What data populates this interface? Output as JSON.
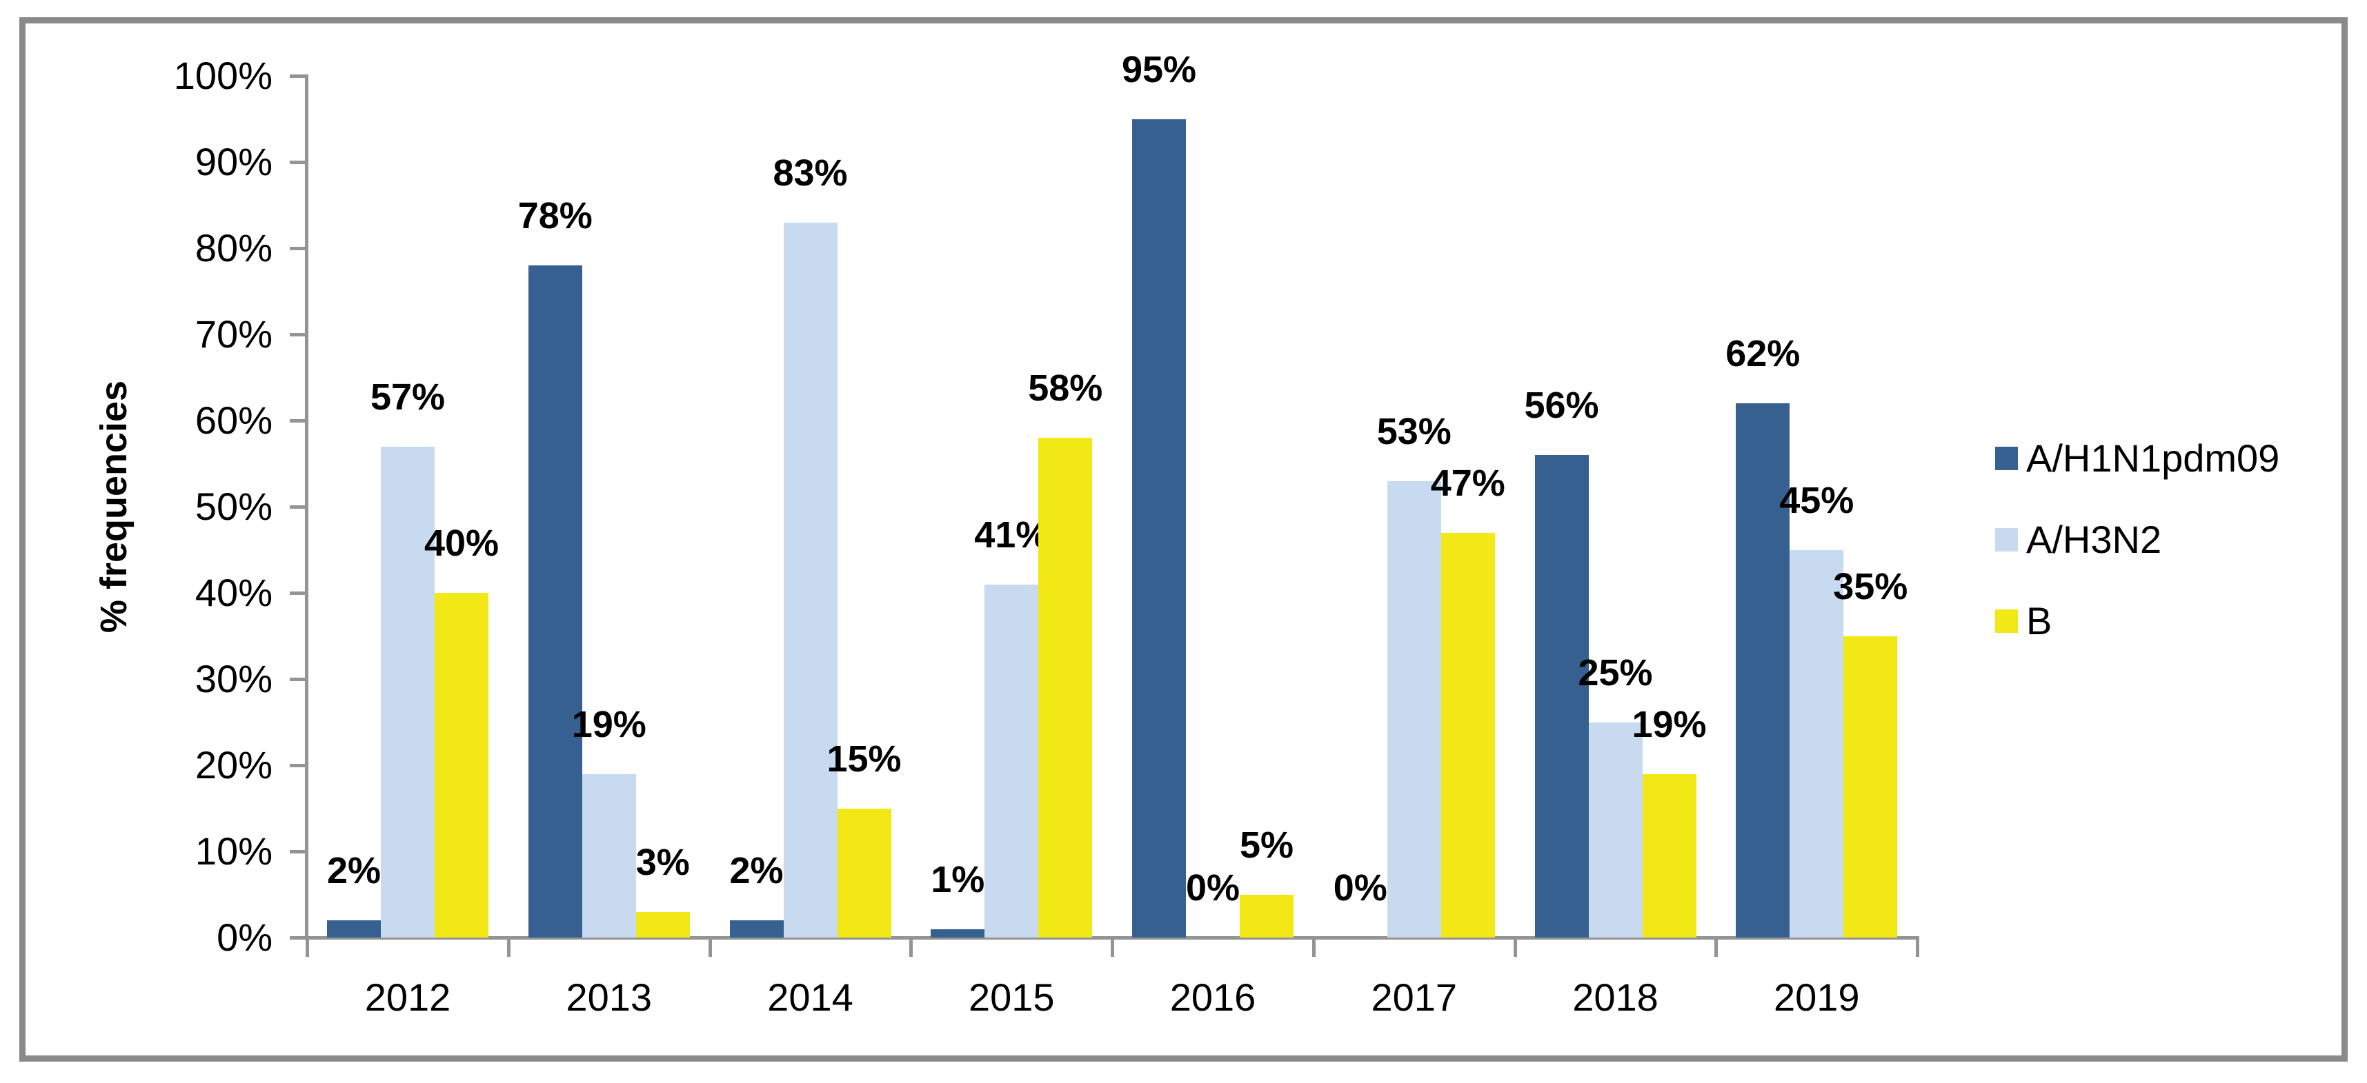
{
  "chart_data": {
    "type": "bar",
    "title": "",
    "ylabel": "% frequencies",
    "xlabel": "",
    "categories": [
      "2012",
      "2013",
      "2014",
      "2015",
      "2016",
      "2017",
      "2018",
      "2019"
    ],
    "series": [
      {
        "name": "A/H1N1pdm09",
        "color": "#36608F",
        "values": [
          2,
          78,
          2,
          1,
          95,
          0,
          56,
          62
        ],
        "labels": [
          "2%",
          "78%",
          "2%",
          "1%",
          "95%",
          "0%",
          "56%",
          "62%"
        ]
      },
      {
        "name": "A/H3N2",
        "color": "#C8DAF0",
        "values": [
          57,
          19,
          83,
          41,
          0,
          53,
          25,
          45
        ],
        "labels": [
          "57%",
          "19%",
          "83%",
          "41%",
          "0%",
          "53%",
          "25%",
          "45%"
        ]
      },
      {
        "name": "B",
        "color": "#F2E815",
        "values": [
          40,
          3,
          15,
          58,
          5,
          47,
          19,
          35
        ],
        "labels": [
          "40%",
          "3%",
          "15%",
          "58%",
          "5%",
          "47%",
          "19%",
          "35%"
        ]
      }
    ],
    "ylim": [
      0,
      100
    ],
    "ytick_step": 10,
    "ytick_labels": [
      "0%",
      "10%",
      "20%",
      "30%",
      "40%",
      "50%",
      "60%",
      "70%",
      "80%",
      "90%",
      "100%"
    ],
    "grid": "off",
    "legend_position": "right",
    "bar_label_position": "outside-end",
    "axis_color": "#949494",
    "frame_color": "#8A8A8A"
  }
}
